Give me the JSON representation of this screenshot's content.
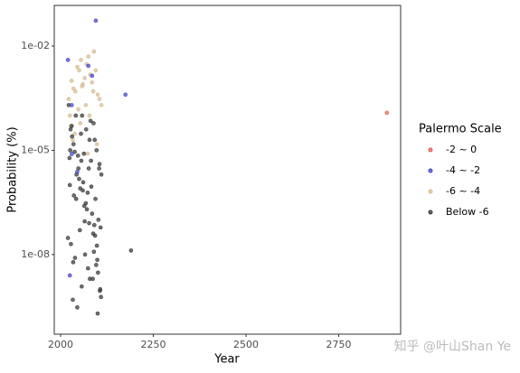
{
  "chart_data": {
    "type": "scatter",
    "x_label": "Year",
    "y_label": "Probability (%)",
    "xlim": [
      1983,
      2917
    ],
    "xticks": [
      2000,
      2250,
      2500,
      2750
    ],
    "ylim": [
      5.1e-11,
      0.148
    ],
    "ylog": true,
    "yticks": [
      {
        "value": 0.01,
        "label": "1e-02"
      },
      {
        "value": 1e-05,
        "label": "1e-05"
      },
      {
        "value": 1e-08,
        "label": "1e-08"
      }
    ],
    "legend_title": "Palermo Scale",
    "legend_position": "right",
    "grid": false,
    "series": [
      {
        "name": "-2 ~ 0",
        "color": "#e05a50",
        "x": [
          2880
        ],
        "values": [
          0.00012
        ]
      },
      {
        "name": "-4 ~ -2",
        "color": "#3f3fc4",
        "x": [
          2020,
          2095,
          2075,
          2085,
          2175,
          2030,
          2045,
          2025,
          2030
        ],
        "values": [
          0.004,
          0.054,
          0.0027,
          0.0014,
          0.0004,
          7.8e-06,
          2.4e-06,
          2.5e-09,
          0.0002
        ]
      },
      {
        "name": "-6 ~ -4",
        "color": "#d4b990",
        "x": [
          2022,
          2030,
          2040,
          2050,
          2060,
          2070,
          2080,
          2090,
          2100,
          2110,
          2025,
          2035,
          2045,
          2055,
          2065,
          2075,
          2085,
          2095,
          2105,
          2028,
          2038,
          2048,
          2058,
          2068,
          2078,
          2088,
          2098,
          2033,
          2053,
          2073
        ],
        "values": [
          0.0003,
          0.001,
          0.0005,
          0.002,
          0.0008,
          0.003,
          0.0015,
          0.007,
          0.0004,
          0.0002,
          0.0001,
          0.0006,
          0.0025,
          0.004,
          0.0012,
          0.005,
          0.0009,
          0.002,
          0.0003,
          5e-05,
          3e-05,
          0.00015,
          0.0007,
          0.0002,
          0.0001,
          0.0005,
          1.5e-05,
          2e-05,
          6e-05,
          8e-06
        ]
      },
      {
        "name": "Below -6",
        "color": "#333333",
        "x": [
          2022,
          2030,
          2041,
          2055,
          2063,
          2078,
          2089,
          2097,
          2105,
          2110,
          2025,
          2036,
          2048,
          2060,
          2071,
          2083,
          2094,
          2102,
          2108,
          2020,
          2028,
          2039,
          2052,
          2066,
          2074,
          2087,
          2099,
          2107,
          2033,
          2045,
          2058,
          2069,
          2081,
          2092,
          2104,
          2024,
          2038,
          2050,
          2064,
          2077,
          2090,
          2101,
          2109,
          2027,
          2043,
          2056,
          2068,
          2085,
          2096,
          2106,
          2031,
          2047,
          2061,
          2073,
          2088,
          2100,
          2035,
          2053,
          2079,
          2093,
          2026,
          2042,
          2065,
          2082,
          2098,
          2034,
          2057,
          2076,
          2091,
          2190
        ],
        "values": [
          0.0002,
          5e-05,
          0.0001,
          3e-05,
          8e-06,
          2e-05,
          6e-05,
          1e-05,
          4e-06,
          2e-06,
          1e-06,
          5e-07,
          3e-06,
          7e-07,
          2e-07,
          9e-07,
          4e-07,
          1e-07,
          6e-08,
          3e-08,
          2e-08,
          8e-09,
          5e-08,
          1e-08,
          4e-09,
          2e-09,
          7e-09,
          1e-09,
          5e-10,
          3e-10,
          0.0001,
          4e-05,
          7e-05,
          2e-05,
          3e-06,
          6e-06,
          9e-06,
          1.5e-06,
          2.5e-07,
          8e-08,
          1.2e-08,
          3e-09,
          6e-10,
          4e-05,
          2e-06,
          5e-06,
          3e-07,
          1.5e-07,
          5e-09,
          9e-10,
          2.5e-05,
          7e-06,
          1.2e-06,
          6e-07,
          4e-08,
          2e-10,
          1.5e-05,
          8e-07,
          2e-09,
          3.5e-08,
          1e-05,
          4e-07,
          9e-08,
          5e-06,
          1.8e-08,
          6e-09,
          1.2e-09,
          3e-06,
          7e-08,
          1.3e-08
        ]
      }
    ],
    "watermark": "知乎 @叶山Shan Ye"
  }
}
